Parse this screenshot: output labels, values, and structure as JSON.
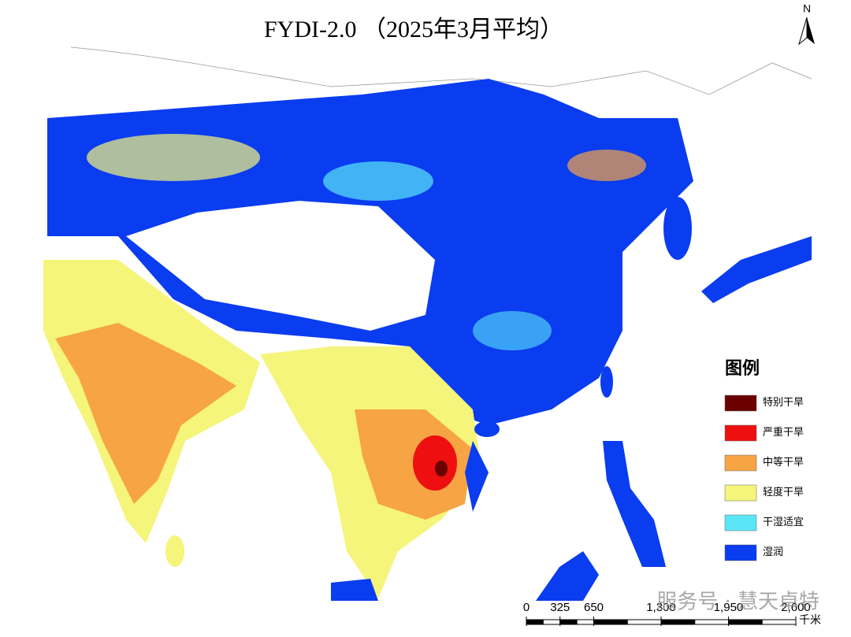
{
  "title": "FYDI-2.0 （2025年3月平均）",
  "north_arrow": "N",
  "legend": {
    "title": "图例",
    "items": [
      {
        "label": "特别干旱",
        "color": "#6b0000"
      },
      {
        "label": "严重干旱",
        "color": "#ee1010"
      },
      {
        "label": "中等干旱",
        "color": "#f7a444"
      },
      {
        "label": "轻度干旱",
        "color": "#f4f57a"
      },
      {
        "label": "干湿适宜",
        "color": "#5ae6f7"
      },
      {
        "label": "湿润",
        "color": "#0a3cf0"
      }
    ]
  },
  "scale_bar": {
    "unit": "千米",
    "ticks": [
      0,
      325,
      650,
      {
        "value": 1300,
        "label": "1,300"
      },
      {
        "value": 1950,
        "label": "1,950"
      },
      {
        "value": 2600,
        "label": "2,600"
      }
    ]
  },
  "watermark": "服务号 · 慧天卓特"
}
